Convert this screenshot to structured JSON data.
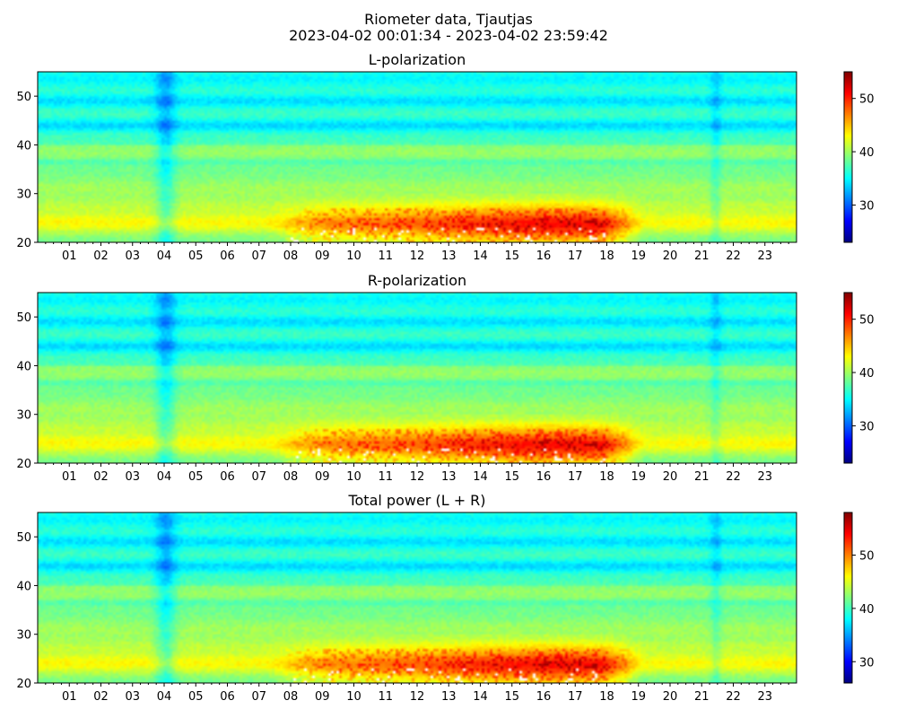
{
  "figure": {
    "title_line1": "Riometer data, Tjautjas",
    "title_line2": "2023-04-02 00:01:34 - 2023-04-02 23:59:42"
  },
  "chart_data": [
    {
      "type": "heatmap",
      "title": "L-polarization",
      "xlabel": "",
      "ylabel": "",
      "xlim": [
        0,
        24
      ],
      "ylim": [
        20,
        55
      ],
      "xticks": [
        "01",
        "02",
        "03",
        "04",
        "05",
        "06",
        "07",
        "08",
        "09",
        "10",
        "11",
        "12",
        "13",
        "14",
        "15",
        "16",
        "17",
        "18",
        "19",
        "20",
        "21",
        "22",
        "23"
      ],
      "yticks": [
        20,
        30,
        40,
        50
      ],
      "colormap": "jet",
      "colorbar": {
        "min": 23,
        "max": 55,
        "ticks": [
          30,
          40,
          50
        ]
      },
      "description_values": {
        "low_band_peak_hours": [
          8,
          19
        ],
        "dark_vertical_bands_hours": [
          4.0,
          21.4
        ],
        "cold_rows": [
          44,
          49,
          53
        ]
      }
    },
    {
      "type": "heatmap",
      "title": "R-polarization",
      "xlabel": "",
      "ylabel": "",
      "xlim": [
        0,
        24
      ],
      "ylim": [
        20,
        55
      ],
      "xticks": [
        "01",
        "02",
        "03",
        "04",
        "05",
        "06",
        "07",
        "08",
        "09",
        "10",
        "11",
        "12",
        "13",
        "14",
        "15",
        "16",
        "17",
        "18",
        "19",
        "20",
        "21",
        "22",
        "23"
      ],
      "yticks": [
        20,
        30,
        40,
        50
      ],
      "colormap": "jet",
      "colorbar": {
        "min": 23,
        "max": 55,
        "ticks": [
          30,
          40,
          50
        ]
      },
      "description_values": {
        "low_band_peak_hours": [
          8,
          19
        ],
        "dark_vertical_bands_hours": [
          4.0,
          21.4
        ],
        "cold_rows": [
          44,
          49,
          53
        ]
      }
    },
    {
      "type": "heatmap",
      "title": "Total power (L + R)",
      "xlabel": "",
      "ylabel": "",
      "xlim": [
        0,
        24
      ],
      "ylim": [
        20,
        55
      ],
      "xticks": [
        "01",
        "02",
        "03",
        "04",
        "05",
        "06",
        "07",
        "08",
        "09",
        "10",
        "11",
        "12",
        "13",
        "14",
        "15",
        "16",
        "17",
        "18",
        "19",
        "20",
        "21",
        "22",
        "23"
      ],
      "yticks": [
        20,
        30,
        40,
        50
      ],
      "colormap": "jet",
      "colorbar": {
        "min": 26,
        "max": 58,
        "ticks": [
          30,
          40,
          50
        ]
      },
      "description_values": {
        "low_band_peak_hours": [
          8,
          19
        ],
        "dark_vertical_bands_hours": [
          4.0,
          21.4
        ],
        "cold_rows": [
          44,
          49,
          53
        ]
      }
    }
  ]
}
